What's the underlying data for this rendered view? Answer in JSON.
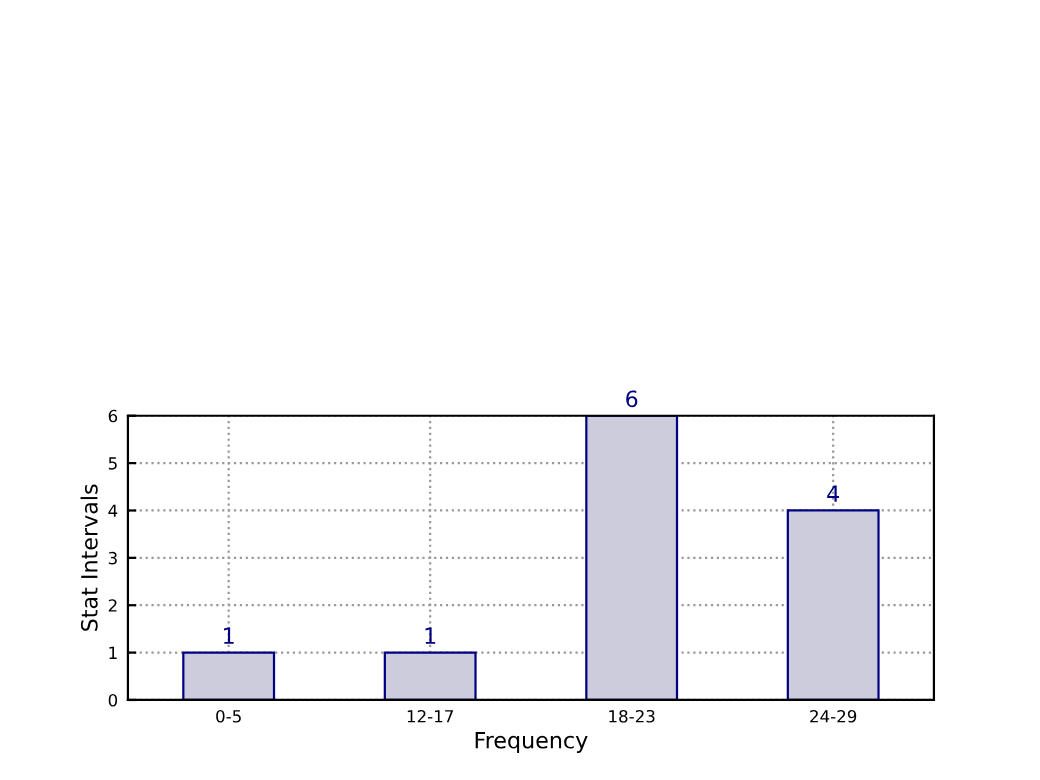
{
  "chart_data": {
    "type": "bar",
    "categories": [
      "0-5",
      "12-17",
      "18-23",
      "24-29"
    ],
    "values": [
      1,
      1,
      6,
      4
    ],
    "color": "#ccccdd",
    "xlabel": "Frequency",
    "ylabel": "Stat Intervals",
    "ylim": [
      0,
      6
    ],
    "yticks": [
      0,
      1,
      2,
      3,
      4,
      5,
      6
    ],
    "grid": true,
    "line_style": "dotted",
    "data_labels": true
  }
}
